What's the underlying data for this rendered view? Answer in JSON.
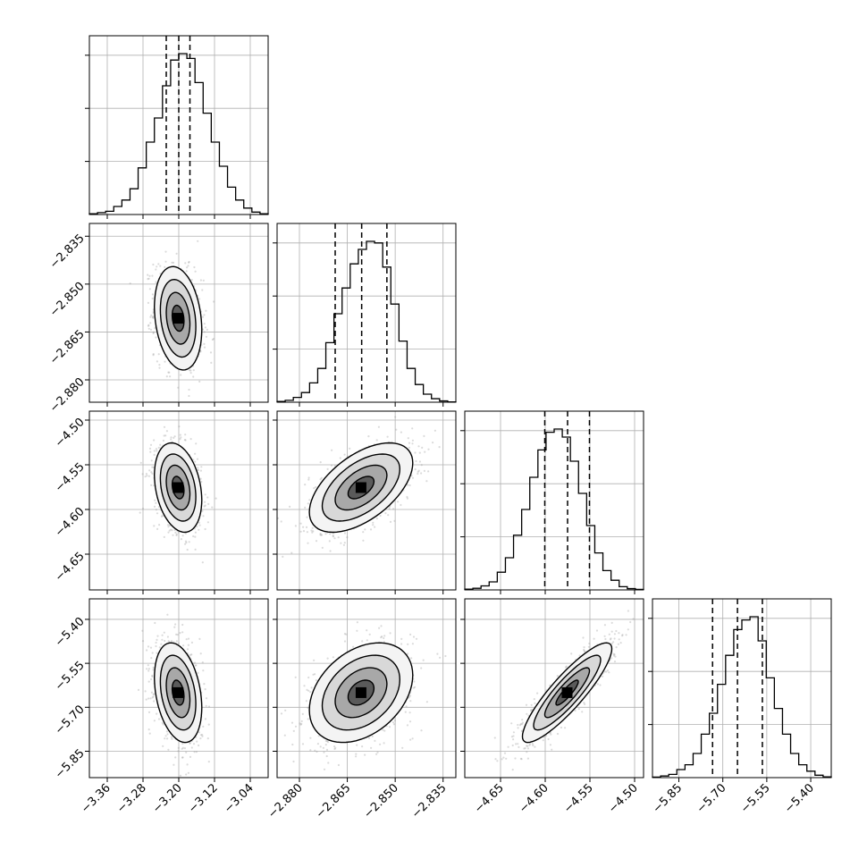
{
  "chart_data": {
    "type": "corner",
    "parameters": [
      {
        "ticks": [
          -3.36,
          -3.28,
          -3.2,
          -3.12,
          -3.04
        ],
        "tick_labels": [
          "−3.36",
          "−3.28",
          "−3.20",
          "−3.12",
          "−3.04"
        ],
        "range": [
          -3.4,
          -3.0
        ],
        "median": -3.2,
        "q16": -3.228,
        "q84": -3.175
      },
      {
        "ticks": [
          -2.88,
          -2.865,
          -2.85,
          -2.835
        ],
        "tick_labels": [
          "−2.880",
          "−2.865",
          "−2.850",
          "−2.835"
        ],
        "range": [
          -2.887,
          -2.831
        ],
        "median": -2.8605,
        "q16": -2.8688,
        "q84": -2.8526
      },
      {
        "ticks": [
          -4.65,
          -4.6,
          -4.55,
          -4.5
        ],
        "tick_labels": [
          "−4.65",
          "−4.60",
          "−4.55",
          "−4.50"
        ],
        "range": [
          -4.69,
          -4.49
        ],
        "median": -4.575,
        "q16": -4.6005,
        "q84": -4.5505
      },
      {
        "ticks": [
          -5.85,
          -5.7,
          -5.55,
          -5.4
        ],
        "tick_labels": [
          "−5.85",
          "−5.70",
          "−5.55",
          "−5.40"
        ],
        "range": [
          -5.94,
          -5.33
        ],
        "median": -5.65,
        "q16": -5.735,
        "q84": -5.565
      }
    ],
    "histograms": [
      [
        0.005,
        0.012,
        0.02,
        0.05,
        0.09,
        0.16,
        0.29,
        0.45,
        0.6,
        0.8,
        0.96,
        1.0,
        0.97,
        0.82,
        0.63,
        0.45,
        0.3,
        0.17,
        0.09,
        0.04,
        0.015,
        0.005
      ],
      [
        0.005,
        0.012,
        0.03,
        0.06,
        0.12,
        0.21,
        0.37,
        0.55,
        0.71,
        0.86,
        0.95,
        1.0,
        0.99,
        0.84,
        0.61,
        0.38,
        0.21,
        0.11,
        0.05,
        0.022,
        0.008,
        0.002
      ],
      [
        0.005,
        0.01,
        0.025,
        0.05,
        0.11,
        0.2,
        0.34,
        0.5,
        0.7,
        0.87,
        0.98,
        1.0,
        0.95,
        0.8,
        0.6,
        0.4,
        0.23,
        0.12,
        0.06,
        0.02,
        0.008,
        0.003
      ],
      [
        0.003,
        0.01,
        0.02,
        0.05,
        0.08,
        0.15,
        0.27,
        0.4,
        0.58,
        0.76,
        0.92,
        0.98,
        1.0,
        0.85,
        0.62,
        0.43,
        0.27,
        0.15,
        0.08,
        0.04,
        0.015,
        0.005
      ]
    ],
    "correlations": [
      [
        1,
        -0.22,
        -0.28,
        -0.3
      ],
      [
        -0.22,
        1,
        0.55,
        0.35
      ],
      [
        -0.28,
        0.55,
        1,
        0.88
      ],
      [
        -0.3,
        0.35,
        0.88,
        1
      ]
    ],
    "quantiles": [
      0.16,
      0.5,
      0.84
    ],
    "grid": true
  }
}
